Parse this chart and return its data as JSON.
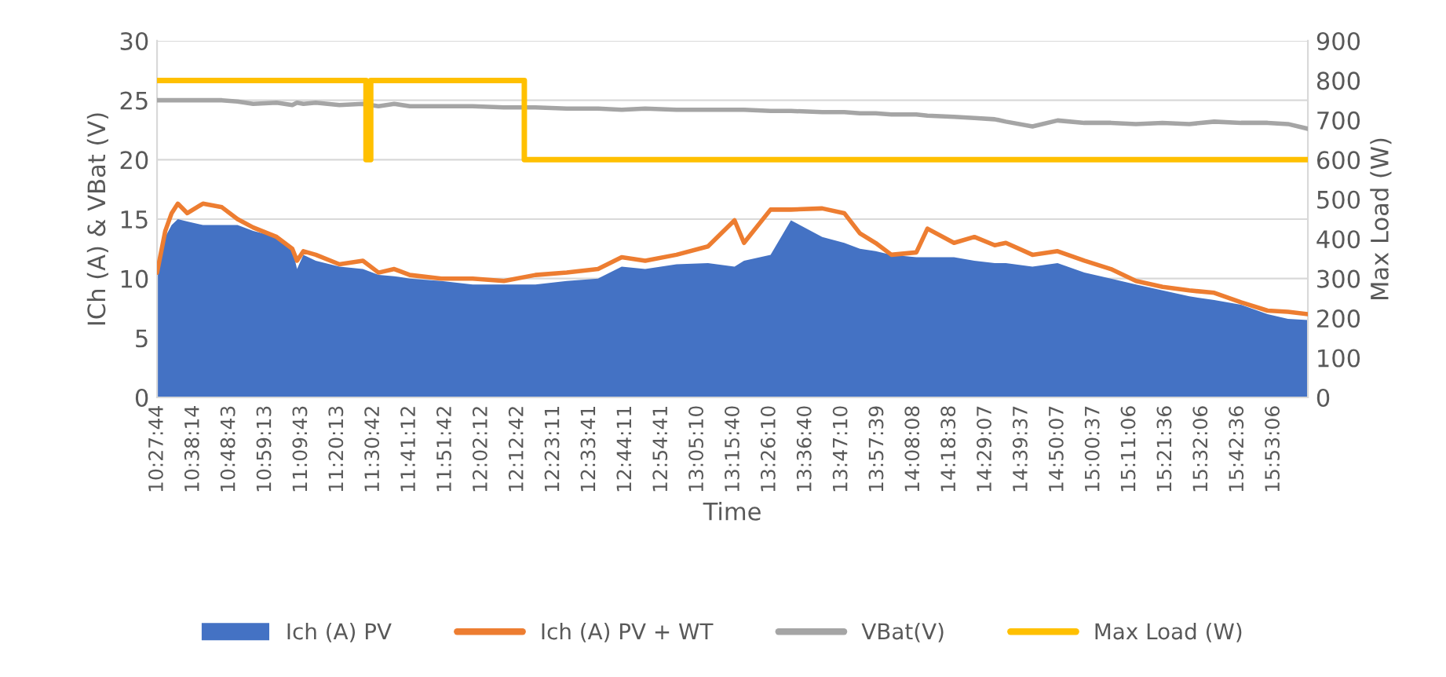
{
  "chart_data": {
    "type": "line",
    "xlabel": "Time",
    "ylabel": "ICh (A) & VBat (V)",
    "y2label": "Max Load (W)",
    "x": [
      10.46,
      10.5,
      10.531,
      10.561,
      10.607,
      10.683,
      10.775,
      10.851,
      10.927,
      11.041,
      11.117,
      11.14,
      11.171,
      11.231,
      11.346,
      11.46,
      11.536,
      11.612,
      11.688,
      11.841,
      11.993,
      12.145,
      12.298,
      12.45,
      12.602,
      12.717,
      12.831,
      12.983,
      13.136,
      13.265,
      13.311,
      13.44,
      13.539,
      13.691,
      13.798,
      13.874,
      13.95,
      14.027,
      14.148,
      14.202,
      14.331,
      14.43,
      14.529,
      14.583,
      14.712,
      14.834,
      14.964,
      15.093,
      15.215,
      15.344,
      15.474,
      15.595,
      15.725,
      15.854,
      15.953,
      16.05
    ],
    "series": [
      {
        "name": "Ich (A) PV",
        "type": "area",
        "color": "#4472c4",
        "values": [
          10.5,
          13.5,
          14.5,
          15.0,
          14.8,
          14.5,
          14.5,
          14.5,
          14.0,
          13.5,
          12.5,
          10.8,
          12.0,
          11.5,
          11.0,
          10.8,
          10.3,
          10.2,
          10.0,
          9.8,
          9.5,
          9.5,
          9.5,
          9.8,
          10.0,
          11.0,
          10.8,
          11.2,
          11.3,
          11.0,
          11.5,
          12.0,
          14.9,
          13.5,
          13.0,
          12.5,
          12.3,
          12.0,
          11.8,
          11.8,
          11.8,
          11.5,
          11.3,
          11.3,
          11.0,
          11.3,
          10.5,
          10.0,
          9.5,
          9.0,
          8.5,
          8.2,
          7.8,
          7.0,
          6.6,
          6.5
        ]
      },
      {
        "name": "Ich (A) PV + WT",
        "color": "#ed7d31",
        "values": [
          10.5,
          14.0,
          15.5,
          16.3,
          15.5,
          16.3,
          16.0,
          15.0,
          14.3,
          13.5,
          12.5,
          11.5,
          12.3,
          12.0,
          11.2,
          11.5,
          10.5,
          10.8,
          10.3,
          10.0,
          10.0,
          9.8,
          10.3,
          10.5,
          10.8,
          11.8,
          11.5,
          12.0,
          12.7,
          14.9,
          13.0,
          15.8,
          15.8,
          15.9,
          15.5,
          13.8,
          13.0,
          12.0,
          12.2,
          14.2,
          13.0,
          13.5,
          12.8,
          13.0,
          12.0,
          12.3,
          11.5,
          10.8,
          9.8,
          9.3,
          9.0,
          8.8,
          8.0,
          7.3,
          7.2,
          7.0
        ]
      },
      {
        "name": "VBat(V)",
        "color": "#a5a5a5",
        "values": [
          25.0,
          25.0,
          25.0,
          25.0,
          25.0,
          25.0,
          25.0,
          24.9,
          24.7,
          24.8,
          24.6,
          24.8,
          24.7,
          24.8,
          24.6,
          24.7,
          24.5,
          24.7,
          24.5,
          24.5,
          24.5,
          24.4,
          24.4,
          24.3,
          24.3,
          24.2,
          24.3,
          24.2,
          24.2,
          24.2,
          24.2,
          24.1,
          24.1,
          24.0,
          24.0,
          23.9,
          23.9,
          23.8,
          23.8,
          23.7,
          23.6,
          23.5,
          23.4,
          23.2,
          22.8,
          23.3,
          23.1,
          23.1,
          23.0,
          23.1,
          23.0,
          23.2,
          23.1,
          23.1,
          23.0,
          22.6
        ]
      },
      {
        "name": "Max Load (W)",
        "axis": "y2",
        "color": "#ffc000",
        "x": [
          10.46,
          11.475,
          11.475,
          11.498,
          11.498,
          12.244,
          12.244,
          16.05
        ],
        "values": [
          800,
          800,
          600,
          600,
          800,
          800,
          600,
          600
        ]
      }
    ],
    "xlim": [
      10.46,
      16.05
    ],
    "xticks": [
      {
        "value": 10.4622,
        "label": "10:27:44"
      },
      {
        "value": 10.6372,
        "label": "10:38:14"
      },
      {
        "value": 10.8119,
        "label": "10:48:43"
      },
      {
        "value": 10.9869,
        "label": "10:59:13"
      },
      {
        "value": 11.1619,
        "label": "11:09:43"
      },
      {
        "value": 11.3369,
        "label": "11:20:13"
      },
      {
        "value": 11.5117,
        "label": "11:30:42"
      },
      {
        "value": 11.6867,
        "label": "11:41:12"
      },
      {
        "value": 11.8617,
        "label": "11:51:42"
      },
      {
        "value": 12.0367,
        "label": "12:02:12"
      },
      {
        "value": 12.2117,
        "label": "12:12:42"
      },
      {
        "value": 12.3864,
        "label": "12:23:11"
      },
      {
        "value": 12.5614,
        "label": "12:33:41"
      },
      {
        "value": 12.7364,
        "label": "12:44:11"
      },
      {
        "value": 12.9114,
        "label": "12:54:41"
      },
      {
        "value": 13.0861,
        "label": "13:05:10"
      },
      {
        "value": 13.2611,
        "label": "13:15:40"
      },
      {
        "value": 13.4361,
        "label": "13:26:10"
      },
      {
        "value": 13.6111,
        "label": "13:36:40"
      },
      {
        "value": 13.7861,
        "label": "13:47:10"
      },
      {
        "value": 13.9608,
        "label": "13:57:39"
      },
      {
        "value": 14.1356,
        "label": "14:08:08"
      },
      {
        "value": 14.3106,
        "label": "14:18:38"
      },
      {
        "value": 14.4853,
        "label": "14:29:07"
      },
      {
        "value": 14.6603,
        "label": "14:39:37"
      },
      {
        "value": 14.8353,
        "label": "14:50:07"
      },
      {
        "value": 15.0103,
        "label": "15:00:37"
      },
      {
        "value": 15.185,
        "label": "15:11:06"
      },
      {
        "value": 15.36,
        "label": "15:21:36"
      },
      {
        "value": 15.535,
        "label": "15:32:06"
      },
      {
        "value": 15.71,
        "label": "15:42:36"
      },
      {
        "value": 15.885,
        "label": "15:53:06"
      }
    ],
    "ylim": [
      0,
      30
    ],
    "yticks": [
      0,
      5,
      10,
      15,
      20,
      25,
      30
    ],
    "y2lim": [
      0,
      900
    ],
    "y2ticks": [
      0,
      100,
      200,
      300,
      400,
      500,
      600,
      700,
      800,
      900
    ],
    "grid": "y",
    "legend": "bottom"
  }
}
